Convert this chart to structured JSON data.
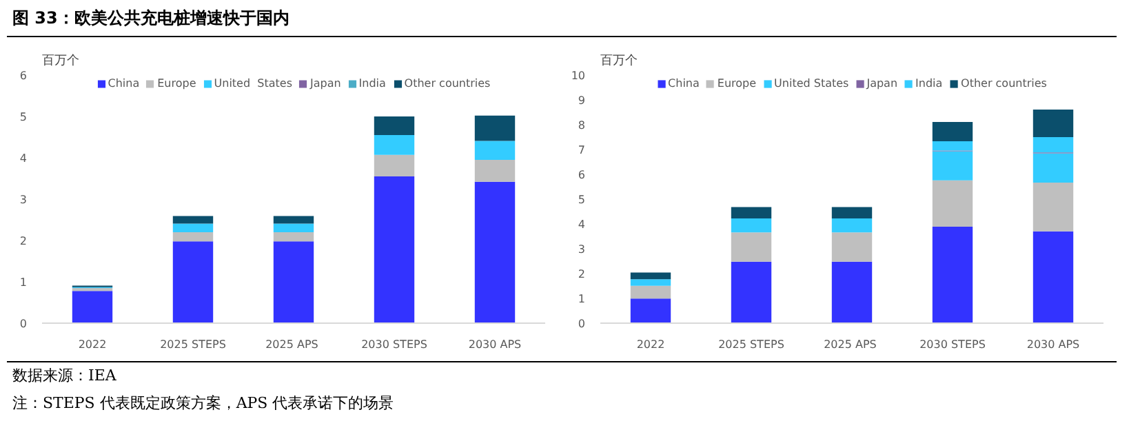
{
  "chart_data": [
    {
      "type": "bar",
      "stacked": true,
      "title": "图 33：欧美公共充电桩增速快于国内",
      "annotations": [
        "数据来源：IEA",
        "注：STEPS 代表既定政策方案，APS 代表承诺下的场景"
      ],
      "ylabel": "百万个",
      "categories": [
        "2022",
        "2025 STEPS",
        "2025  APS",
        "2030 STEPS",
        "2030 APS"
      ],
      "ylim": [
        0,
        6
      ],
      "yticks": [
        0,
        1,
        2,
        3,
        4,
        5,
        6
      ],
      "grid": false,
      "legend": "top",
      "series": [
        {
          "name": "China",
          "color": "#3333ff",
          "values": [
            0.78,
            1.98,
            1.98,
            3.55,
            3.42
          ]
        },
        {
          "name": "Europe",
          "color": "#bfbfbf",
          "values": [
            0.07,
            0.22,
            0.22,
            0.52,
            0.53
          ]
        },
        {
          "name": "United  States",
          "color": "#33ccff",
          "values": [
            0.02,
            0.21,
            0.21,
            0.48,
            0.46
          ]
        },
        {
          "name": "Japan",
          "color": "#8064a2",
          "values": [
            0,
            0,
            0,
            0,
            0
          ]
        },
        {
          "name": "India",
          "color": "#4bacc6",
          "values": [
            0,
            0,
            0,
            0,
            0
          ]
        },
        {
          "name": "Other countries",
          "color": "#0b4f6c",
          "values": [
            0.04,
            0.18,
            0.18,
            0.45,
            0.61
          ]
        }
      ]
    },
    {
      "type": "bar",
      "stacked": true,
      "ylabel": "百万个",
      "categories": [
        "2022",
        "2025 STEPS",
        "2025  APS",
        "2030 STEPS",
        "2030 APS"
      ],
      "ylim": [
        0,
        10
      ],
      "yticks": [
        0,
        1,
        2,
        3,
        4,
        5,
        6,
        7,
        8,
        9,
        10
      ],
      "grid": false,
      "legend": "top",
      "series": [
        {
          "name": "China",
          "color": "#3333ff",
          "values": [
            0.99,
            2.48,
            2.48,
            3.89,
            3.7
          ]
        },
        {
          "name": "Europe",
          "color": "#bfbfbf",
          "values": [
            0.52,
            1.18,
            1.18,
            1.87,
            1.97
          ]
        },
        {
          "name": "United States",
          "color": "#33ccff",
          "values": [
            0.26,
            0.56,
            0.56,
            1.17,
            1.18
          ]
        },
        {
          "name": "Japan",
          "color": "#8064a2",
          "values": [
            0,
            0,
            0,
            0.03,
            0.03
          ]
        },
        {
          "name": "India",
          "color": "#33ccff",
          "values": [
            0,
            0,
            0,
            0.37,
            0.62
          ]
        },
        {
          "name": "Other countries",
          "color": "#0b4f6c",
          "values": [
            0.27,
            0.46,
            0.46,
            0.78,
            1.11
          ]
        }
      ]
    }
  ]
}
